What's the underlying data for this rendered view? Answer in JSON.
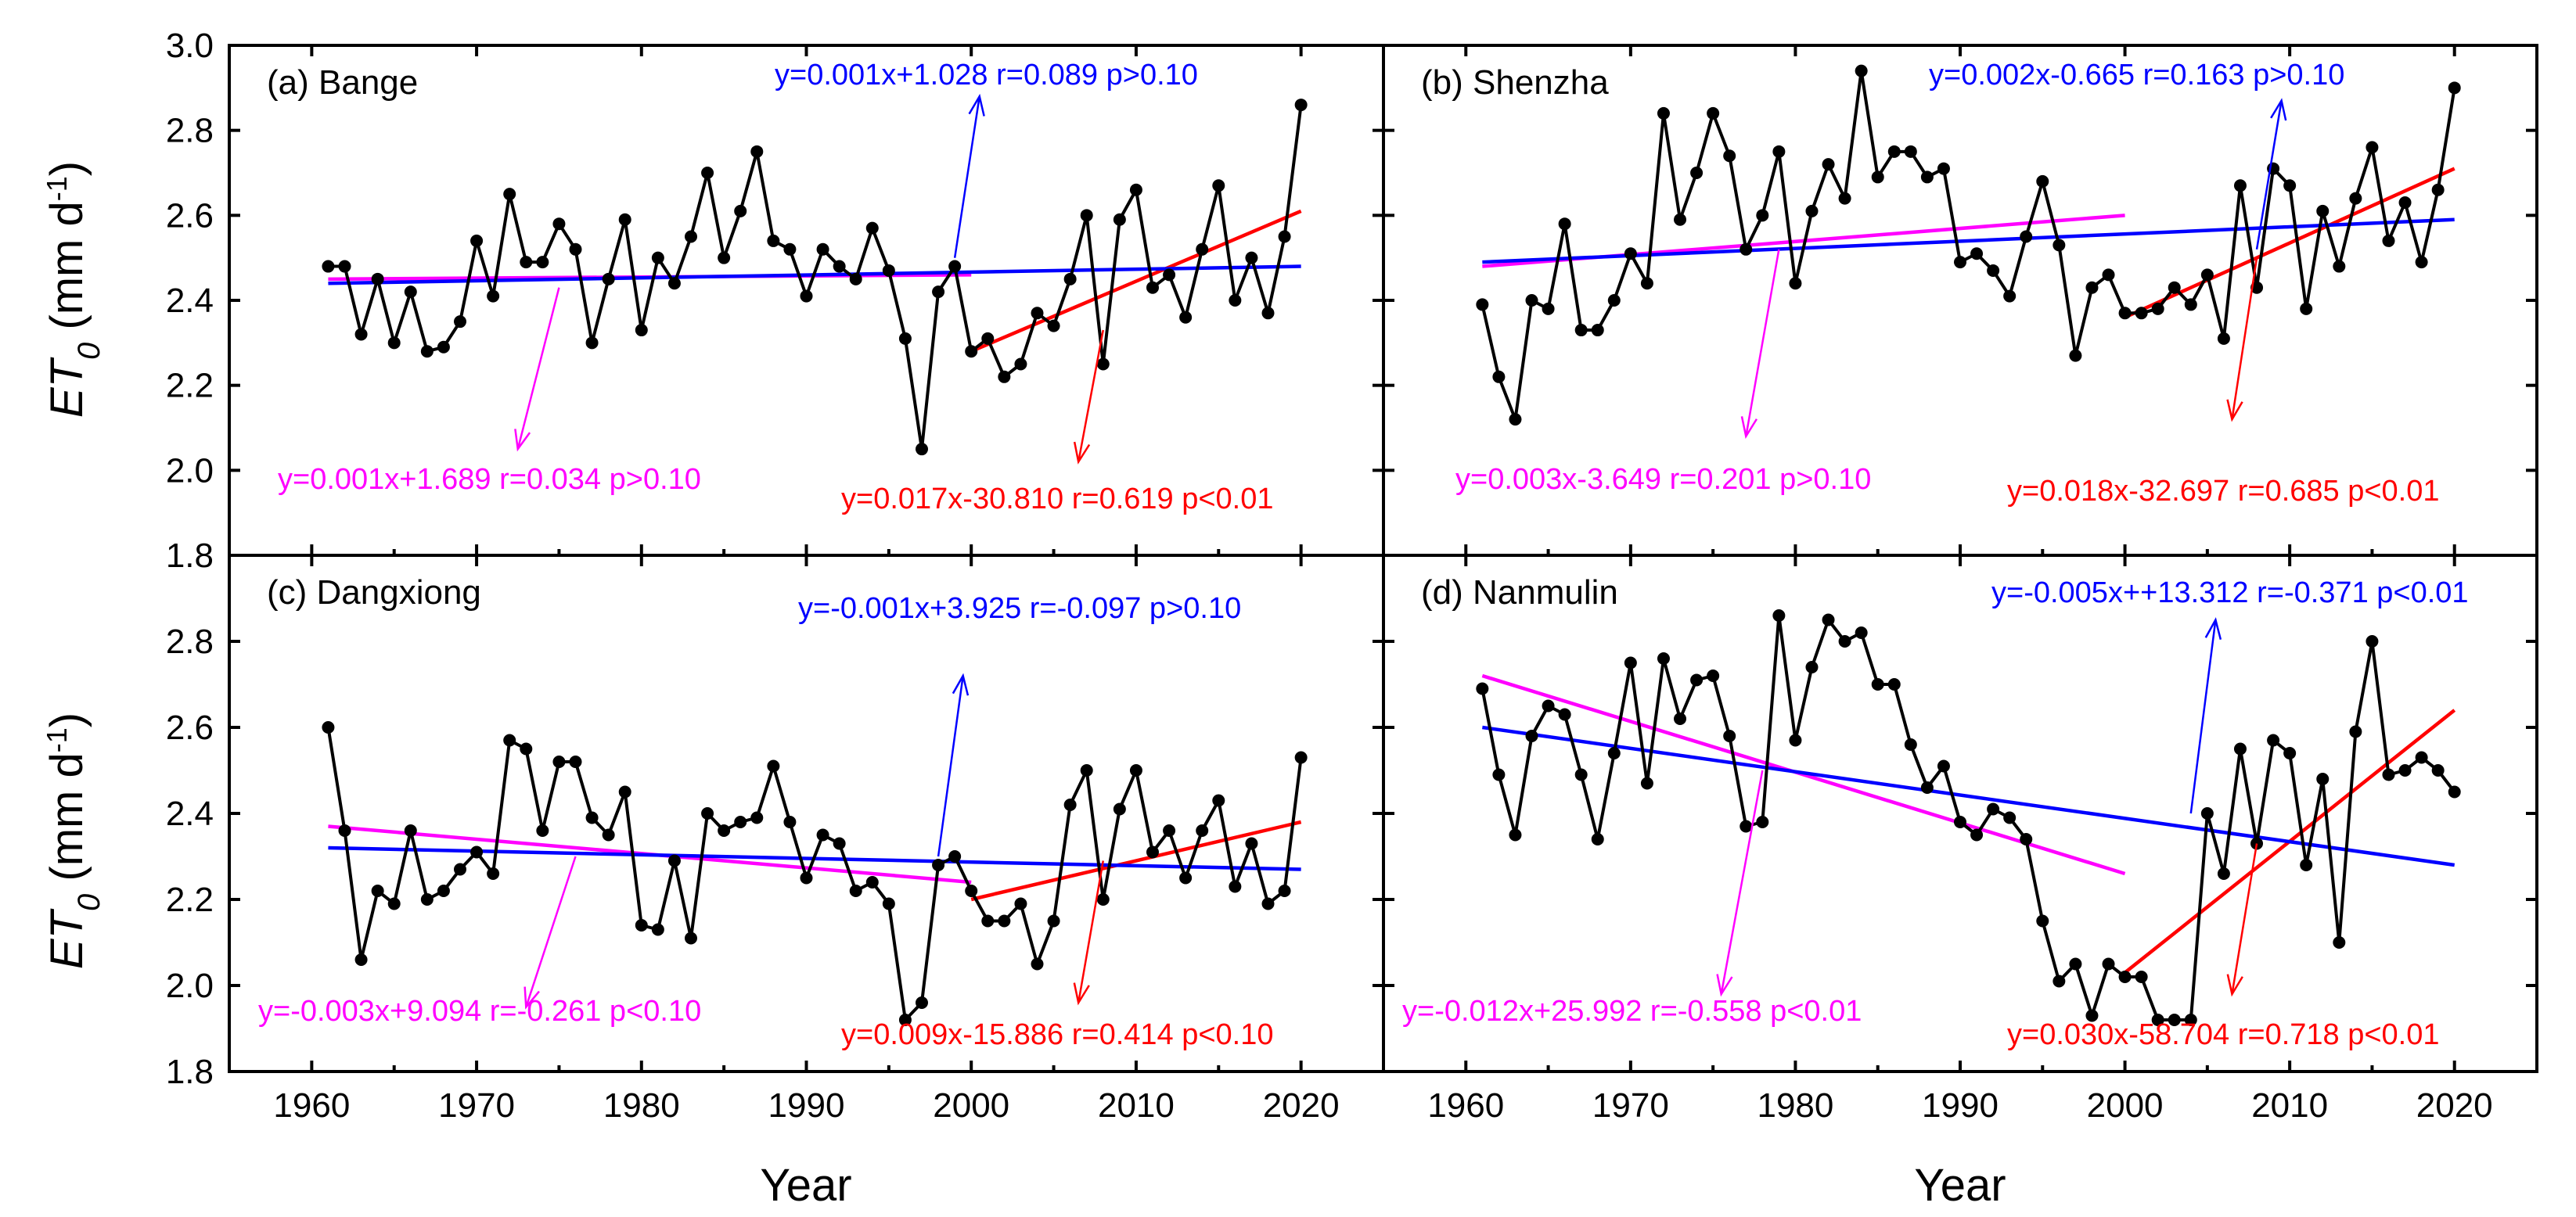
{
  "chart_data": [
    {
      "type": "line",
      "panel": "a",
      "title": "(a) Bange",
      "xlabel": "Year",
      "ylabel": "ET0 (mm d-1)",
      "xlim": [
        1955,
        2025
      ],
      "ylim": [
        1.8,
        3.0
      ],
      "x_ticks": [
        "1960",
        "1970",
        "1980",
        "1990",
        "2000",
        "2010",
        "2020"
      ],
      "y_ticks": [
        "1.8",
        "2.0",
        "2.2",
        "2.4",
        "2.6",
        "2.8",
        "3.0"
      ],
      "series": [
        {
          "name": "ET0",
          "x_start": 1961,
          "values": [
            2.48,
            2.48,
            2.32,
            2.45,
            2.3,
            2.42,
            2.28,
            2.29,
            2.35,
            2.54,
            2.41,
            2.65,
            2.49,
            2.49,
            2.58,
            2.52,
            2.3,
            2.45,
            2.59,
            2.33,
            2.5,
            2.44,
            2.55,
            2.7,
            2.5,
            2.61,
            2.75,
            2.54,
            2.52,
            2.41,
            2.52,
            2.48,
            2.45,
            2.57,
            2.47,
            2.31,
            2.05,
            2.42,
            2.48,
            2.28,
            2.31,
            2.22,
            2.25,
            2.37,
            2.34,
            2.45,
            2.6,
            2.25,
            2.59,
            2.66,
            2.43,
            2.46,
            2.36,
            2.52,
            2.67,
            2.4,
            2.5,
            2.37,
            2.55,
            2.86
          ]
        }
      ],
      "trend_lines": [
        {
          "name": "1961-2000",
          "color": "#ff00ff",
          "x": [
            1961,
            2000
          ],
          "y": [
            2.45,
            2.46
          ]
        },
        {
          "name": "2000-2020",
          "color": "#ff0000",
          "x": [
            2000,
            2020
          ],
          "y": [
            2.28,
            2.61
          ]
        },
        {
          "name": "1961-2020",
          "color": "#0000ff",
          "x": [
            1961,
            2020
          ],
          "y": [
            2.44,
            2.48
          ]
        }
      ],
      "annotations": [
        {
          "text": "y=0.001x+1.028   r=0.089  p>0.10",
          "color": "#0000ff"
        },
        {
          "text": "y=0.001x+1.689   r=0.034  p>0.10",
          "color": "#ff00ff"
        },
        {
          "text": "y=0.017x-30.810   r=0.619  p<0.01",
          "color": "#ff0000"
        }
      ]
    },
    {
      "type": "line",
      "panel": "b",
      "title": "(b) Shenzha",
      "xlabel": "Year",
      "ylabel": "",
      "xlim": [
        1955,
        2025
      ],
      "ylim": [
        1.8,
        3.0
      ],
      "x_ticks": [
        "1960",
        "1970",
        "1980",
        "1990",
        "2000",
        "2010",
        "2020"
      ],
      "y_ticks": [],
      "series": [
        {
          "name": "ET0",
          "x_start": 1961,
          "values": [
            2.39,
            2.22,
            2.12,
            2.4,
            2.38,
            2.58,
            2.33,
            2.33,
            2.4,
            2.51,
            2.44,
            2.84,
            2.59,
            2.7,
            2.84,
            2.74,
            2.52,
            2.6,
            2.75,
            2.44,
            2.61,
            2.72,
            2.64,
            2.94,
            2.69,
            2.75,
            2.75,
            2.69,
            2.71,
            2.49,
            2.51,
            2.47,
            2.41,
            2.55,
            2.68,
            2.53,
            2.27,
            2.43,
            2.46,
            2.37,
            2.37,
            2.38,
            2.43,
            2.39,
            2.46,
            2.31,
            2.67,
            2.43,
            2.71,
            2.67,
            2.38,
            2.61,
            2.48,
            2.64,
            2.76,
            2.54,
            2.63,
            2.49,
            2.66,
            2.9
          ]
        }
      ],
      "trend_lines": [
        {
          "name": "1961-2000",
          "color": "#ff00ff",
          "x": [
            1961,
            2000
          ],
          "y": [
            2.48,
            2.6
          ]
        },
        {
          "name": "2000-2020",
          "color": "#ff0000",
          "x": [
            2000,
            2020
          ],
          "y": [
            2.36,
            2.71
          ]
        },
        {
          "name": "1961-2020",
          "color": "#0000ff",
          "x": [
            1961,
            2020
          ],
          "y": [
            2.49,
            2.59
          ]
        }
      ],
      "annotations": [
        {
          "text": "y=0.002x-0.665   r=0.163  p>0.10",
          "color": "#0000ff"
        },
        {
          "text": "y=0.003x-3.649   r=0.201  p>0.10",
          "color": "#ff00ff"
        },
        {
          "text": "y=0.018x-32.697   r=0.685  p<0.01",
          "color": "#ff0000"
        }
      ]
    },
    {
      "type": "line",
      "panel": "c",
      "title": "(c) Dangxiong",
      "xlabel": "Year",
      "ylabel": "ET0 (mm d-1)",
      "xlim": [
        1955,
        2025
      ],
      "ylim": [
        1.8,
        3.0
      ],
      "x_ticks": [
        "1960",
        "1970",
        "1980",
        "1990",
        "2000",
        "2010",
        "2020"
      ],
      "y_ticks": [
        "1.8",
        "2.0",
        "2.2",
        "2.4",
        "2.6",
        "2.8"
      ],
      "series": [
        {
          "name": "ET0",
          "x_start": 1961,
          "values": [
            2.6,
            2.36,
            2.06,
            2.22,
            2.19,
            2.36,
            2.2,
            2.22,
            2.27,
            2.31,
            2.26,
            2.57,
            2.55,
            2.36,
            2.52,
            2.52,
            2.39,
            2.35,
            2.45,
            2.14,
            2.13,
            2.29,
            2.11,
            2.4,
            2.36,
            2.38,
            2.39,
            2.51,
            2.38,
            2.25,
            2.35,
            2.33,
            2.22,
            2.24,
            2.19,
            1.92,
            1.96,
            2.28,
            2.3,
            2.22,
            2.15,
            2.15,
            2.19,
            2.05,
            2.15,
            2.42,
            2.5,
            2.2,
            2.41,
            2.5,
            2.31,
            2.36,
            2.25,
            2.36,
            2.43,
            2.23,
            2.33,
            2.19,
            2.22,
            2.53
          ]
        }
      ],
      "trend_lines": [
        {
          "name": "1961-2000",
          "color": "#ff00ff",
          "x": [
            1961,
            2000
          ],
          "y": [
            2.37,
            2.24
          ]
        },
        {
          "name": "2000-2020",
          "color": "#ff0000",
          "x": [
            2000,
            2020
          ],
          "y": [
            2.2,
            2.38
          ]
        },
        {
          "name": "1961-2020",
          "color": "#0000ff",
          "x": [
            1961,
            2020
          ],
          "y": [
            2.32,
            2.27
          ]
        }
      ],
      "annotations": [
        {
          "text": "y=-0.001x+3.925   r=-0.097  p>0.10",
          "color": "#0000ff"
        },
        {
          "text": "y=-0.003x+9.094   r=-0.261  p<0.10",
          "color": "#ff00ff"
        },
        {
          "text": "y=0.009x-15.886   r=0.414  p<0.10",
          "color": "#ff0000"
        }
      ]
    },
    {
      "type": "line",
      "panel": "d",
      "title": "(d) Nanmulin",
      "xlabel": "Year",
      "ylabel": "",
      "xlim": [
        1955,
        2025
      ],
      "ylim": [
        1.8,
        3.0
      ],
      "x_ticks": [
        "1960",
        "1970",
        "1980",
        "1990",
        "2000",
        "2010",
        "2020"
      ],
      "y_ticks": [],
      "series": [
        {
          "name": "ET0",
          "x_start": 1961,
          "values": [
            2.69,
            2.49,
            2.35,
            2.58,
            2.65,
            2.63,
            2.49,
            2.34,
            2.54,
            2.75,
            2.47,
            2.76,
            2.62,
            2.71,
            2.72,
            2.58,
            2.37,
            2.38,
            2.86,
            2.57,
            2.74,
            2.85,
            2.8,
            2.82,
            2.7,
            2.7,
            2.56,
            2.46,
            2.51,
            2.38,
            2.35,
            2.41,
            2.39,
            2.34,
            2.15,
            2.01,
            2.05,
            1.93,
            2.05,
            2.02,
            2.02,
            1.92,
            1.92,
            1.92,
            2.4,
            2.26,
            2.55,
            2.33,
            2.57,
            2.54,
            2.28,
            2.48,
            2.1,
            2.59,
            2.8,
            2.49,
            2.5,
            2.53,
            2.5,
            2.45
          ]
        }
      ],
      "trend_lines": [
        {
          "name": "1961-2000",
          "color": "#ff00ff",
          "x": [
            1961,
            2000
          ],
          "y": [
            2.72,
            2.26
          ]
        },
        {
          "name": "2000-2020",
          "color": "#ff0000",
          "x": [
            2000,
            2020
          ],
          "y": [
            2.03,
            2.64
          ]
        },
        {
          "name": "1961-2020",
          "color": "#0000ff",
          "x": [
            1961,
            2020
          ],
          "y": [
            2.6,
            2.28
          ]
        }
      ],
      "annotations": [
        {
          "text": "y=-0.005x++13.312   r=-0.371  p<0.01",
          "color": "#0000ff"
        },
        {
          "text": "y=-0.012x+25.992   r=-0.558  p<0.01",
          "color": "#ff00ff"
        },
        {
          "text": "y=0.030x-58.704   r=0.718  p<0.01",
          "color": "#ff0000"
        }
      ]
    }
  ]
}
